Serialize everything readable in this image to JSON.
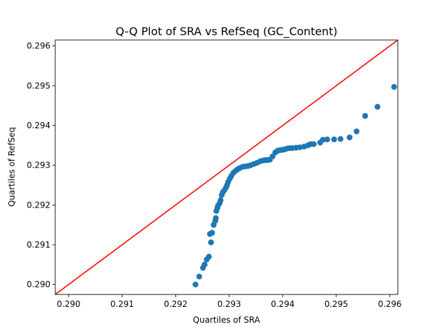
{
  "chart_data": {
    "type": "scatter",
    "title": "Q-Q Plot of SRA vs RefSeq (GC_Content)",
    "xlabel": "Quartiles of SRA",
    "ylabel": "Quartiles of RefSeq",
    "xlim": [
      0.28975,
      0.29615
    ],
    "ylim": [
      0.28975,
      0.29615
    ],
    "xticks": [
      "0.290",
      "0.291",
      "0.292",
      "0.293",
      "0.294",
      "0.295",
      "0.296"
    ],
    "yticks": [
      "0.290",
      "0.291",
      "0.292",
      "0.293",
      "0.294",
      "0.295",
      "0.296"
    ],
    "grid": false,
    "marker_color": "#1f77b4",
    "reference_line": {
      "color": "#ff0000",
      "from": [
        0.28975,
        0.28975
      ],
      "to": [
        0.29615,
        0.29615
      ]
    },
    "series": [
      {
        "x": [
          0.29237,
          0.29244,
          0.29251,
          0.29254,
          0.29258,
          0.29262,
          0.29266,
          0.29264,
          0.29268,
          0.29271,
          0.29274,
          0.29275,
          0.29276,
          0.29278,
          0.29279,
          0.29282,
          0.29284,
          0.29286,
          0.29288,
          0.29291,
          0.29294,
          0.29296,
          0.29298,
          0.29301,
          0.29304,
          0.29308,
          0.29312,
          0.29316,
          0.2932,
          0.29325,
          0.2933,
          0.29335,
          0.2934,
          0.29346,
          0.29352,
          0.29358,
          0.29364,
          0.29368,
          0.29372,
          0.29376,
          0.29381,
          0.29386,
          0.2939,
          0.29392,
          0.29396,
          0.294,
          0.29404,
          0.29408,
          0.29413,
          0.29418,
          0.29425,
          0.29432,
          0.2944,
          0.29447,
          0.29452,
          0.29458,
          0.2947,
          0.29475,
          0.29483,
          0.29496,
          0.29508,
          0.29525,
          0.29538,
          0.29554,
          0.29577,
          0.29608
        ],
        "y": [
          0.29,
          0.2902,
          0.29042,
          0.2905,
          0.29063,
          0.2907,
          0.29106,
          0.29127,
          0.2913,
          0.2915,
          0.2916,
          0.29167,
          0.29185,
          0.29193,
          0.29198,
          0.29204,
          0.29212,
          0.29225,
          0.29232,
          0.29237,
          0.29244,
          0.2925,
          0.29258,
          0.29266,
          0.29273,
          0.29281,
          0.29286,
          0.2929,
          0.29293,
          0.29296,
          0.29297,
          0.29298,
          0.293,
          0.29303,
          0.29306,
          0.2931,
          0.29312,
          0.29313,
          0.29313,
          0.29314,
          0.29322,
          0.29332,
          0.29336,
          0.29337,
          0.29338,
          0.29339,
          0.2934,
          0.29342,
          0.29343,
          0.29343,
          0.29344,
          0.29345,
          0.29347,
          0.2935,
          0.29353,
          0.29353,
          0.29357,
          0.29364,
          0.29365,
          0.29365,
          0.29366,
          0.2937,
          0.29385,
          0.29424,
          0.29447,
          0.29497
        ]
      }
    ]
  }
}
